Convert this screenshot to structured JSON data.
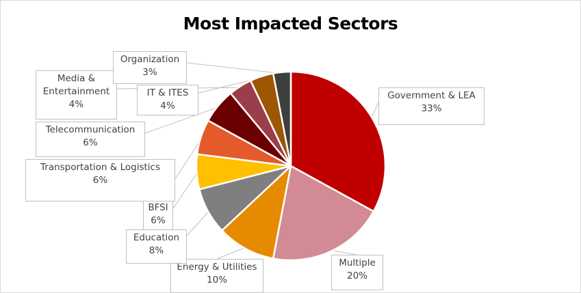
{
  "chart_data": {
    "type": "pie",
    "title": "Most Impacted  Sectors",
    "slices": [
      {
        "label": "Government & LEA",
        "value": 33,
        "value_label": "33%",
        "color": "#c00000"
      },
      {
        "label": "Multiple",
        "value": 20,
        "value_label": "20%",
        "color": "#d28b94"
      },
      {
        "label": "Energy & Utilities",
        "value": 10,
        "value_label": "10%",
        "color": "#e68a00"
      },
      {
        "label": "Education",
        "value": 8,
        "value_label": "8%",
        "color": "#7f7f7f"
      },
      {
        "label": "BFSI",
        "value": 6,
        "value_label": "6%",
        "color": "#ffc000"
      },
      {
        "label": "Transportation & Logistics",
        "value": 6,
        "value_label": "6%",
        "color": "#e55a2b"
      },
      {
        "label": "Telecommunication",
        "value": 6,
        "value_label": "6%",
        "color": "#6b0000"
      },
      {
        "label": "Media & Entertainment",
        "label_lines": [
          "Media &",
          "Entertainment"
        ],
        "value": 4,
        "value_label": "4%",
        "color": "#9c3d4b"
      },
      {
        "label": "IT & ITES",
        "value": 4,
        "value_label": "4%",
        "color": "#9c5700"
      },
      {
        "label": "Organization",
        "value": 3,
        "value_label": "3%",
        "color": "#3f3f3f"
      }
    ],
    "legend": "none",
    "data_labels": "callout"
  }
}
